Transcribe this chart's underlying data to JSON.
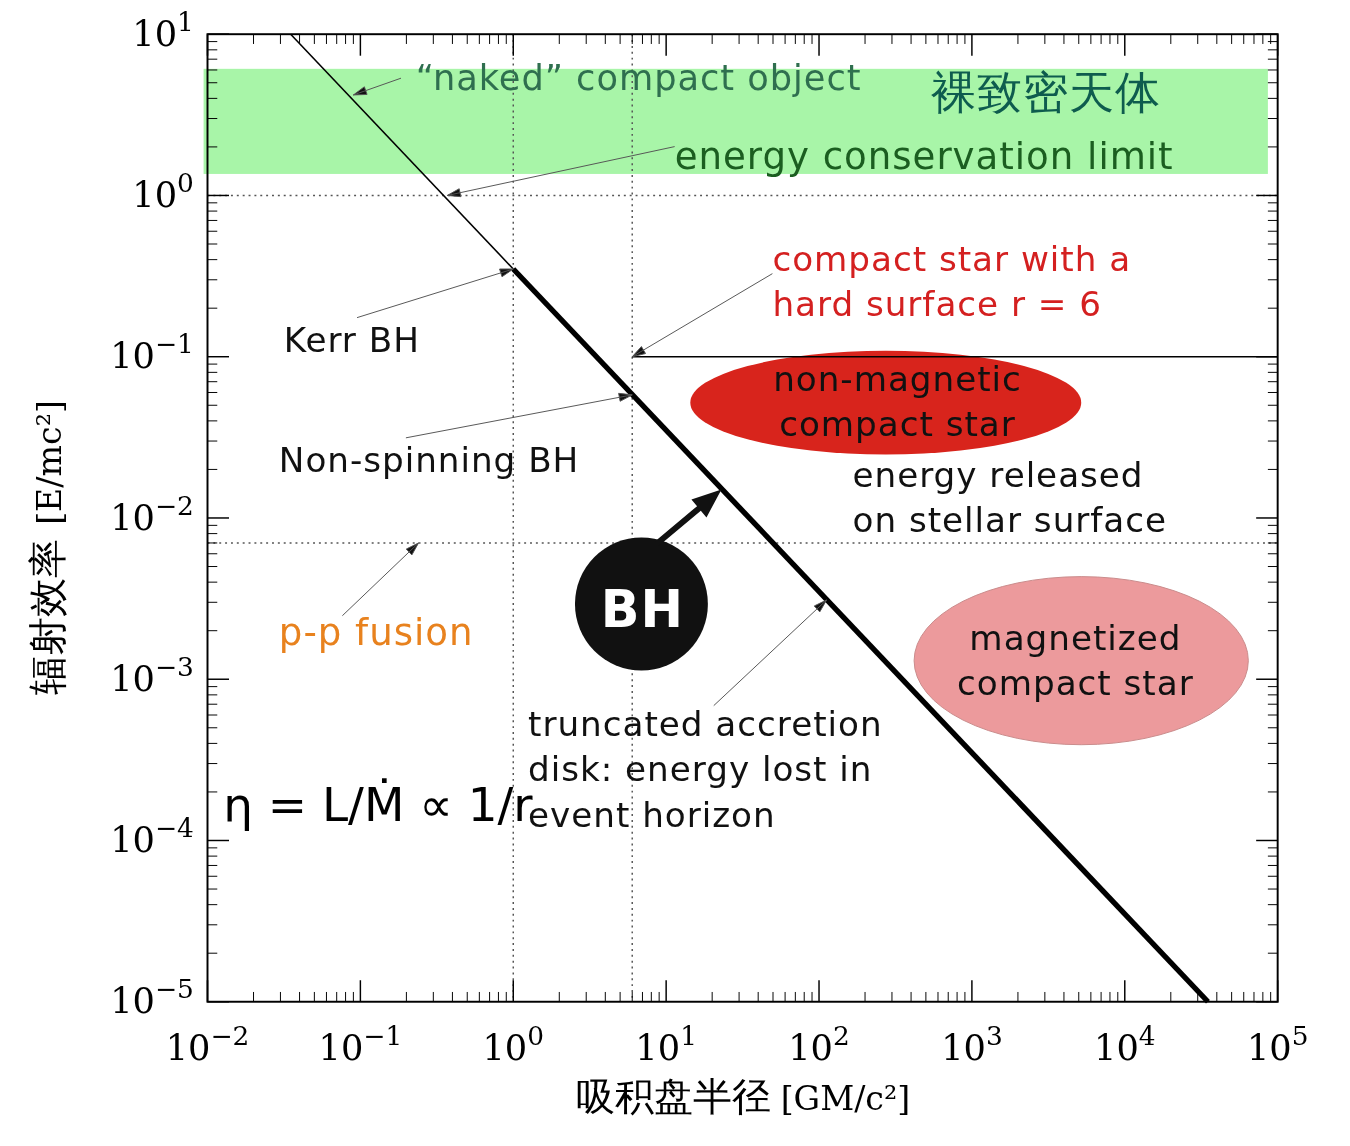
{
  "chart_data": {
    "type": "line",
    "xlabel": "吸积盘半径 [GM/c²]",
    "ylabel": "辐射效率 [E/mc²]",
    "log": "xy",
    "xlim": [
      0.01,
      100000
    ],
    "ylim": [
      1e-05,
      10
    ],
    "xticks": [
      {
        "value": 0.01,
        "label": "10$^{−2}$"
      },
      {
        "value": 0.1,
        "label": "10$^{−1}$"
      },
      {
        "value": 1,
        "label": "10$^{0}$"
      },
      {
        "value": 10,
        "label": "10$^{1}$"
      },
      {
        "value": 100,
        "label": "10$^{2}$"
      },
      {
        "value": 1000,
        "label": "10$^{3}$"
      },
      {
        "value": 10000,
        "label": "10$^{4}$"
      },
      {
        "value": 100000,
        "label": "10$^{5}$"
      }
    ],
    "yticks": [
      {
        "value": 1e-05,
        "label": "10$^{−5}$"
      },
      {
        "value": 0.0001,
        "label": "10$^{−4}$"
      },
      {
        "value": 0.001,
        "label": "10$^{−3}$"
      },
      {
        "value": 0.01,
        "label": "10$^{−2}$"
      },
      {
        "value": 0.1,
        "label": "10$^{−1}$"
      },
      {
        "value": 1,
        "label": "10$^{0}$"
      },
      {
        "value": 10,
        "label": "10$^{1}$"
      }
    ],
    "series": [
      {
        "color": "#000000",
        "x": [
          0.035,
          1
        ],
        "values": [
          10,
          0.35
        ]
      },
      {
        "color": "#000000",
        "x": [
          1,
          35000
        ],
        "values": [
          0.35,
          1e-05
        ]
      },
      {
        "color": "#000000",
        "x": [
          6,
          100000
        ],
        "values": [
          0.1,
          0.1
        ]
      }
    ],
    "ref_lines": [
      {
        "axis": "x",
        "value": 1,
        "color": "#555555",
        "line_style": "dotted"
      },
      {
        "axis": "x",
        "value": 6,
        "color": "#555555",
        "line_style": "dotted"
      },
      {
        "axis": "y",
        "value": 1,
        "color": "#555555",
        "line_style": "dotted"
      },
      {
        "axis": "y",
        "value": 0.007,
        "color": "#555555",
        "line_style": "dotted"
      }
    ],
    "bands": [
      {
        "axis": "y",
        "from": 1.36,
        "to": 6.1,
        "color": "#a8f5a8"
      }
    ],
    "annotations": [
      {
        "text": "“naked” compact object",
        "x": 0.09,
        "y": 4.2
      },
      "裸致密天体",
      {
        "text": "energy conservation limit",
        "x": 0.37,
        "y": 1
      },
      {
        "text": "compact star with a\nhard surface r = 6",
        "x": 6,
        "y": 0.1
      },
      {
        "text": "Kerr BH",
        "x": 1,
        "y": 0.35
      },
      "non-magnetic\ncompact star",
      "energy released\non stellar surface",
      {
        "text": "Non-spinning BH",
        "x": 6,
        "y": 0.058
      },
      {
        "text": "BH",
        "x": 23,
        "y": 0.015
      },
      {
        "text": "p-p fusion",
        "x": 0.24,
        "y": 0.007
      },
      "magnetized\ncompact star",
      {
        "text": "truncated accretion\ndisk: energy lost in\nevent horizon",
        "x": 112,
        "y": 0.0031
      },
      "η = L/Ṁ ∝ 1/r"
    ],
    "grid": false
  }
}
